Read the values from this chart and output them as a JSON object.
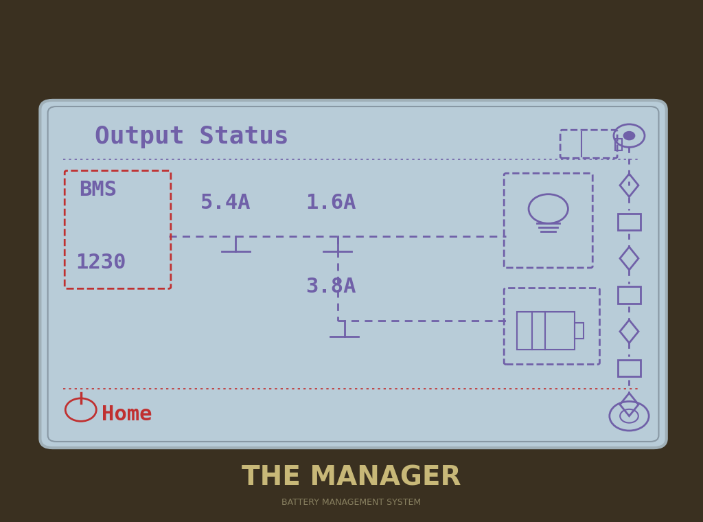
{
  "bg_device": "#3a3020",
  "bg_screen": "#b8ccd8",
  "purple": "#7060a8",
  "red": "#c03030",
  "title": "Output Status",
  "bms_line1": "BMS",
  "bms_line2": "1230",
  "current1": "5.4A",
  "current2": "1.6A",
  "current3": "3.8A",
  "home_label": "Home",
  "manager_text": "THE MANAGER",
  "bms_text": "BATTERY MANAGEMENT SYSTEM"
}
